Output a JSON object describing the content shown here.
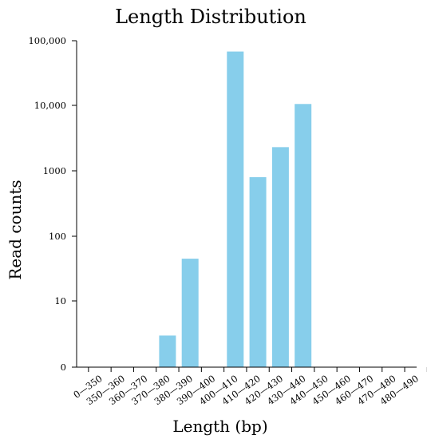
{
  "chart_data": {
    "type": "bar",
    "title": "Length Distribution",
    "xlabel": "Length (bp)",
    "ylabel": "Read counts",
    "y_scale": "log",
    "ylim": [
      1,
      100000
    ],
    "grid": false,
    "categories": [
      "0—350",
      "350—360",
      "360—370",
      "370—380",
      "380—390",
      "390—400",
      "400—410",
      "410—420",
      "420—430",
      "430—440",
      "440—450",
      "450—460",
      "460—470",
      "470—480",
      "480—490"
    ],
    "values": [
      0,
      0,
      0,
      3,
      45,
      0,
      68000,
      800,
      2300,
      10500,
      0,
      0,
      0,
      0,
      0
    ],
    "y_ticks": [
      {
        "value": 1,
        "label": "0"
      },
      {
        "value": 10,
        "label": "10"
      },
      {
        "value": 100,
        "label": "100"
      },
      {
        "value": 1000,
        "label": "1000"
      },
      {
        "value": 10000,
        "label": "10,000"
      },
      {
        "value": 100000,
        "label": "100,000"
      }
    ],
    "bar_color": "#87CEEB"
  }
}
